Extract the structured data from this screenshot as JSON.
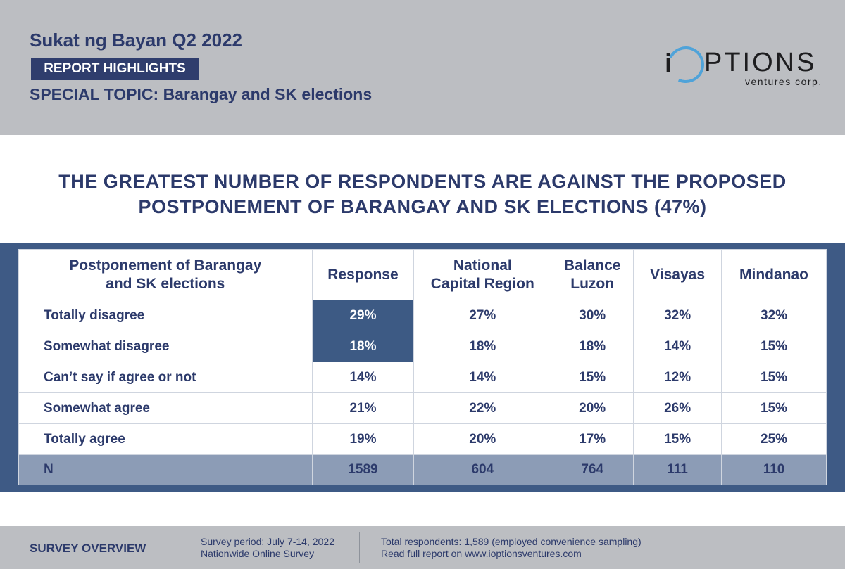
{
  "header": {
    "title": "Sukat ng Bayan Q2 2022",
    "badge": "REPORT HIGHLIGHTS",
    "special_topic": "SPECIAL TOPIC: Barangay and SK elections",
    "logo": {
      "word": "PTIONS",
      "sub": "ventures corp.",
      "letter": "i"
    }
  },
  "headline": {
    "line1": "THE GREATEST NUMBER OF RESPONDENTS ARE AGAINST THE PROPOSED",
    "line2": "POSTPONEMENT OF BARANGAY AND SK ELECTIONS (47%)"
  },
  "table": {
    "headers": {
      "label_line1": "Postponement of Barangay",
      "label_line2": "and SK elections",
      "response": "Response",
      "ncr_line1": "National",
      "ncr_line2": "Capital Region",
      "bl_line1": "Balance",
      "bl_line2": "Luzon",
      "visayas": "Visayas",
      "mindanao": "Mindanao"
    },
    "rows": [
      {
        "label": "Totally disagree",
        "values": [
          "29%",
          "27%",
          "30%",
          "32%",
          "32%"
        ]
      },
      {
        "label": "Somewhat disagree",
        "values": [
          "18%",
          "18%",
          "18%",
          "14%",
          "15%"
        ]
      },
      {
        "label": "Can’t say if agree or not",
        "values": [
          "14%",
          "14%",
          "15%",
          "12%",
          "15%"
        ]
      },
      {
        "label": "Somewhat agree",
        "values": [
          "21%",
          "22%",
          "20%",
          "26%",
          "15%"
        ]
      },
      {
        "label": "Totally agree",
        "values": [
          "19%",
          "20%",
          "17%",
          "15%",
          "25%"
        ]
      }
    ],
    "n_row": {
      "label": "N",
      "values": [
        "1589",
        "604",
        "764",
        "111",
        "110"
      ]
    }
  },
  "footer": {
    "overview": "SURVEY OVERVIEW",
    "period": "Survey period: July 7-14, 2022",
    "type": "Nationwide Online Survey",
    "respondents": "Total respondents: 1,589 (employed convenience sampling)",
    "link": "Read full report on www.ioptionsventures.com"
  },
  "colors": {
    "navy": "#2c3a6b",
    "band": "#3e5a85",
    "header_gray": "#bcbec2",
    "highlight": "#3d5a84",
    "n_row": "#8c9cb6",
    "logo_ring": "#4fa3d9"
  }
}
